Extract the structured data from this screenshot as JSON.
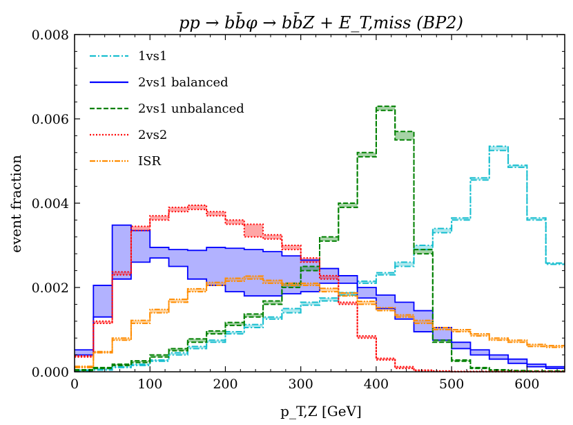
{
  "chart_data": {
    "type": "line",
    "title": "pp → bb̄φ → bb̄Z + E_T,miss (BP2)",
    "xlabel": "p_T,Z [GeV]",
    "ylabel": "event fraction",
    "xlim": [
      0,
      650
    ],
    "ylim": [
      0,
      0.008
    ],
    "xticks": [
      0,
      100,
      200,
      300,
      400,
      500,
      600
    ],
    "xtick_labels": [
      "0",
      "100",
      "200",
      "300",
      "400",
      "500",
      "600"
    ],
    "yticks": [
      0,
      0.002,
      0.004,
      0.006,
      0.008
    ],
    "ytick_labels": [
      "0.000",
      "0.002",
      "0.004",
      "0.006",
      "0.008"
    ],
    "legend_position": "top-left",
    "bin_width": 25,
    "bin_edges_start": 0,
    "series": [
      {
        "name": "1vs1",
        "color": "#17becf",
        "style": "dashdot",
        "band": [
          [
            2e-05,
            4e-05
          ],
          [
            4e-05,
            6e-05
          ],
          [
            0.0001,
            0.00012
          ],
          [
            0.00015,
            0.00018
          ],
          [
            0.00025,
            0.00028
          ],
          [
            0.0004,
            0.00045
          ],
          [
            0.00055,
            0.0006
          ],
          [
            0.0007,
            0.00075
          ],
          [
            0.0009,
            0.00095
          ],
          [
            0.00105,
            0.00112
          ],
          [
            0.00125,
            0.0013
          ],
          [
            0.0014,
            0.0015
          ],
          [
            0.00158,
            0.00165
          ],
          [
            0.00168,
            0.00175
          ],
          [
            0.00182,
            0.00188
          ],
          [
            0.0021,
            0.00215
          ],
          [
            0.0023,
            0.00235
          ],
          [
            0.0025,
            0.0026
          ],
          [
            0.0029,
            0.003
          ],
          [
            0.0033,
            0.0034
          ],
          [
            0.0036,
            0.00365
          ],
          [
            0.00455,
            0.0046
          ],
          [
            0.00525,
            0.00535
          ],
          [
            0.00485,
            0.0049
          ],
          [
            0.0036,
            0.00365
          ],
          [
            0.00255,
            0.00258
          ]
        ]
      },
      {
        "name": "2vs1 balanced",
        "color": "#0000ff",
        "style": "solid",
        "band": [
          [
            0.0004,
            0.00052
          ],
          [
            0.0013,
            0.00205
          ],
          [
            0.0022,
            0.00348
          ],
          [
            0.0026,
            0.00335
          ],
          [
            0.0027,
            0.00295
          ],
          [
            0.0025,
            0.0029
          ],
          [
            0.0022,
            0.00288
          ],
          [
            0.00205,
            0.00295
          ],
          [
            0.0019,
            0.00293
          ],
          [
            0.0018,
            0.0029
          ],
          [
            0.0018,
            0.00285
          ],
          [
            0.00185,
            0.00275
          ],
          [
            0.0019,
            0.00265
          ],
          [
            0.0021,
            0.00245
          ],
          [
            0.0021,
            0.00228
          ],
          [
            0.00175,
            0.002
          ],
          [
            0.0015,
            0.00182
          ],
          [
            0.00125,
            0.00165
          ],
          [
            0.00095,
            0.00145
          ],
          [
            0.00075,
            0.00105
          ],
          [
            0.00055,
            0.0007
          ],
          [
            0.0004,
            0.00052
          ],
          [
            0.0003,
            0.0004
          ],
          [
            0.0002,
            0.0003
          ],
          [
            0.00012,
            0.00018
          ],
          [
            8e-05,
            0.00012
          ]
        ]
      },
      {
        "name": "2vs1 unbalanced",
        "color": "#008000",
        "style": "dashed",
        "band": [
          [
            3e-05,
            5e-05
          ],
          [
            8e-05,
            0.0001
          ],
          [
            0.00015,
            0.00018
          ],
          [
            0.00022,
            0.00026
          ],
          [
            0.00035,
            0.0004
          ],
          [
            0.0005,
            0.00055
          ],
          [
            0.0007,
            0.00078
          ],
          [
            0.0009,
            0.00097
          ],
          [
            0.0011,
            0.00117
          ],
          [
            0.0013,
            0.00137
          ],
          [
            0.0016,
            0.00168
          ],
          [
            0.002,
            0.0021
          ],
          [
            0.0024,
            0.0025
          ],
          [
            0.0031,
            0.0032
          ],
          [
            0.0039,
            0.004
          ],
          [
            0.0051,
            0.0052
          ],
          [
            0.0062,
            0.0063
          ],
          [
            0.0055,
            0.0057
          ],
          [
            0.0028,
            0.0029
          ],
          [
            0.0007,
            0.00075
          ],
          [
            0.00025,
            0.00028
          ],
          [
            8e-05,
            0.0001
          ],
          [
            3e-05,
            5e-05
          ],
          [
            2e-05,
            3e-05
          ],
          [
            1e-05,
            2e-05
          ],
          [
            1e-05,
            2e-05
          ]
        ]
      },
      {
        "name": "2vs2",
        "color": "#ff0000",
        "style": "dotted",
        "band": [
          [
            0.00035,
            0.00038
          ],
          [
            0.00115,
            0.0012
          ],
          [
            0.0023,
            0.00237
          ],
          [
            0.00335,
            0.00345
          ],
          [
            0.0036,
            0.0037
          ],
          [
            0.0038,
            0.0039
          ],
          [
            0.00385,
            0.00395
          ],
          [
            0.0037,
            0.0038
          ],
          [
            0.0035,
            0.0036
          ],
          [
            0.0032,
            0.0035
          ],
          [
            0.00315,
            0.00325
          ],
          [
            0.0029,
            0.003
          ],
          [
            0.0026,
            0.0027
          ],
          [
            0.0022,
            0.00228
          ],
          [
            0.0016,
            0.00165
          ],
          [
            0.0008,
            0.00085
          ],
          [
            0.00028,
            0.00032
          ],
          [
            8e-05,
            0.00012
          ],
          [
            2e-05,
            4e-05
          ],
          [
            1e-05,
            2e-05
          ],
          [
            0.0,
            1e-05
          ],
          [
            0.0,
            1e-05
          ],
          [
            0.0,
            1e-05
          ],
          [
            0.0,
            1e-05
          ],
          [
            0.0,
            1e-05
          ],
          [
            0.0,
            1e-05
          ]
        ]
      },
      {
        "name": "ISR",
        "color": "#ff8c00",
        "style": "dashdotdot",
        "band": [
          [
            0.0001,
            0.00013
          ],
          [
            0.00045,
            0.00048
          ],
          [
            0.00075,
            0.0008
          ],
          [
            0.00115,
            0.00122
          ],
          [
            0.0014,
            0.00148
          ],
          [
            0.00165,
            0.00172
          ],
          [
            0.0019,
            0.00197
          ],
          [
            0.00205,
            0.00212
          ],
          [
            0.00215,
            0.00222
          ],
          [
            0.0022,
            0.00227
          ],
          [
            0.0021,
            0.00217
          ],
          [
            0.00205,
            0.0021
          ],
          [
            0.00205,
            0.0021
          ],
          [
            0.0019,
            0.00198
          ],
          [
            0.0018,
            0.00187
          ],
          [
            0.0016,
            0.00167
          ],
          [
            0.00145,
            0.00152
          ],
          [
            0.0013,
            0.00135
          ],
          [
            0.00115,
            0.00122
          ],
          [
            0.001,
            0.00105
          ],
          [
            0.00095,
            0.001
          ],
          [
            0.00085,
            0.0009
          ],
          [
            0.00075,
            0.0008
          ],
          [
            0.0007,
            0.00075
          ],
          [
            0.0006,
            0.00065
          ],
          [
            0.00058,
            0.00062
          ]
        ]
      }
    ]
  }
}
